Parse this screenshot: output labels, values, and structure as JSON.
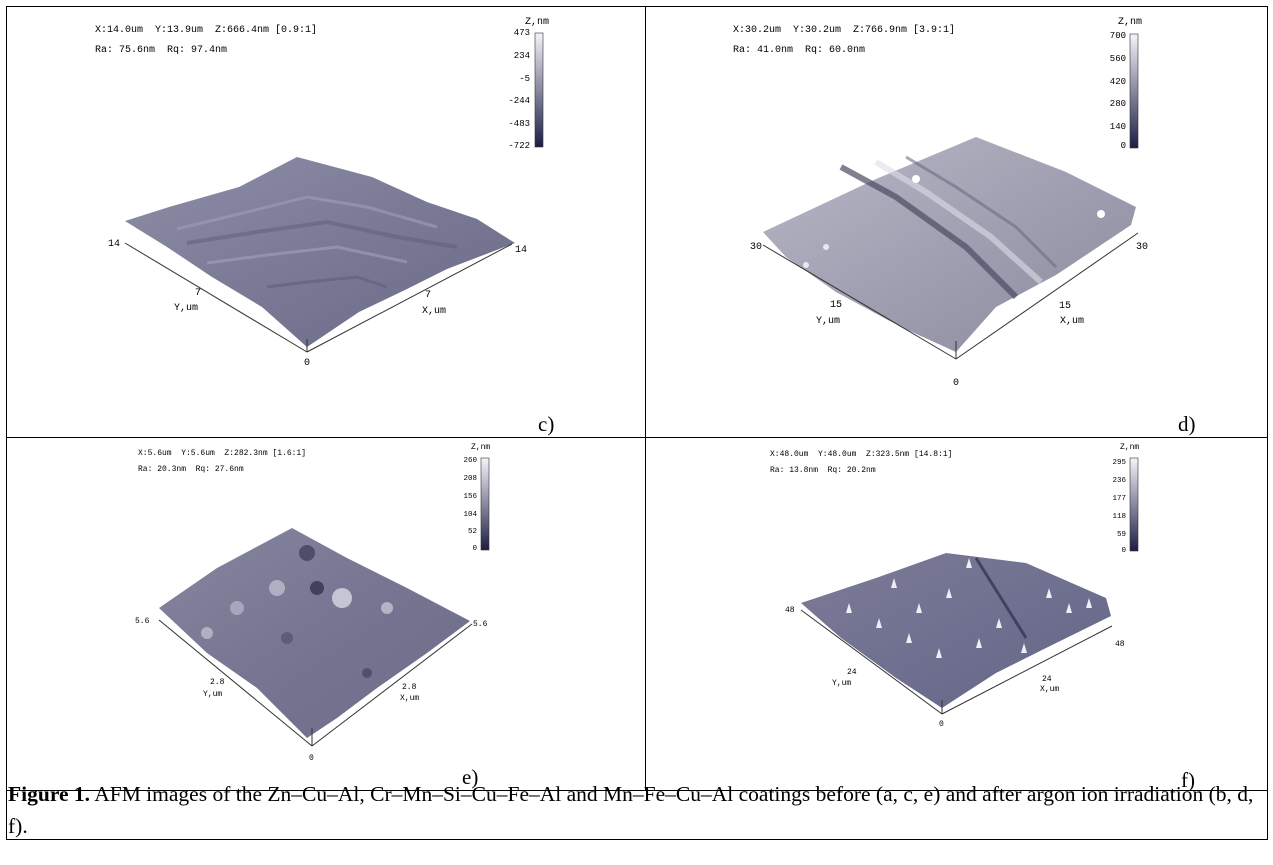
{
  "panels": [
    {
      "id": "c",
      "letter": "c)",
      "header": "X:14.0um  Y:13.9um  Z:666.4nm [0.9:1]",
      "roughness": "Ra: 75.6nm  Rq: 97.4nm",
      "z_title": "Z,nm",
      "z_ticks": [
        "473",
        "234",
        "-5",
        "-244",
        "-483",
        "-722"
      ],
      "axis_left_max": "14",
      "axis_right_max": "14",
      "axis_y_mid": "7",
      "axis_x_mid": "7",
      "axis_origin": "0",
      "y_label": "Y,um",
      "x_label": "X,um"
    },
    {
      "id": "d",
      "letter": "d)",
      "header": "X:30.2um  Y:30.2um  Z:766.9nm [3.9:1]",
      "roughness": "Ra: 41.0nm  Rq: 60.0nm",
      "z_title": "Z,nm",
      "z_ticks": [
        "700",
        "560",
        "420",
        "280",
        "140",
        "0"
      ],
      "axis_left_max": "30",
      "axis_right_max": "30",
      "axis_y_mid": "15",
      "axis_x_mid": "15",
      "axis_origin": "0",
      "y_label": "Y,um",
      "x_label": "X,um"
    },
    {
      "id": "e",
      "letter": "e)",
      "header": "X:5.6um  Y:5.6um  Z:282.3nm [1.6:1]",
      "roughness": "Ra: 20.3nm  Rq: 27.6nm",
      "z_title": "Z,nm",
      "z_ticks": [
        "260",
        "208",
        "156",
        "104",
        "52",
        "0"
      ],
      "axis_left_max": "5.6",
      "axis_right_max": "5.6",
      "axis_y_mid": "2.8",
      "axis_x_mid": "2.8",
      "axis_origin": "0",
      "y_label": "Y,um",
      "x_label": "X,um"
    },
    {
      "id": "f",
      "letter": "f)",
      "header": "X:48.0um  Y:48.0um  Z:323.5nm [14.8:1]",
      "roughness": "Ra: 13.8nm  Rq: 20.2nm",
      "z_title": "Z,nm",
      "z_ticks": [
        "295",
        "236",
        "177",
        "118",
        "59",
        "0"
      ],
      "axis_left_max": "48",
      "axis_right_max": "48",
      "axis_y_mid": "24",
      "axis_x_mid": "24",
      "axis_origin": "0",
      "y_label": "Y,um",
      "x_label": "X,um"
    }
  ],
  "caption": {
    "label": "Figure 1.",
    "text": " AFM images of the Zn–Cu–Al, Cr–Mn–Si–Cu–Fe–Al and Mn–Fe–Cu–Al coatings before (a, c, e) and after argon ion irradiation (b, d, f)."
  }
}
